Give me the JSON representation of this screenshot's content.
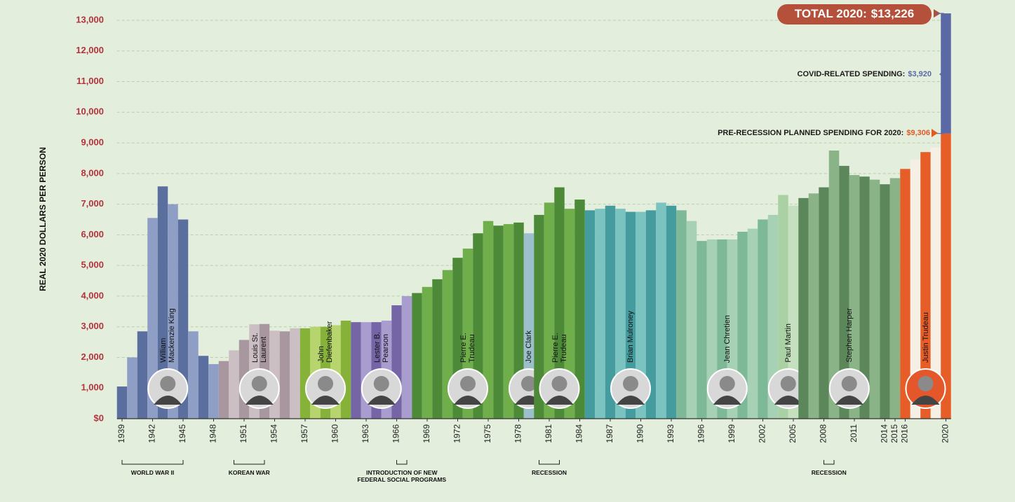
{
  "chart_data": {
    "type": "bar",
    "ylabel": "REAL 2020 DOLLARS PER PERSON",
    "xlim": [
      1938.5,
      2020.5
    ],
    "xticks": [
      1939,
      1942,
      1945,
      1948,
      1951,
      1954,
      1957,
      1960,
      1963,
      1966,
      1969,
      1972,
      1975,
      1978,
      1981,
      1984,
      1987,
      1990,
      1993,
      1996,
      1999,
      2002,
      2005,
      2008,
      2011,
      2014,
      2015,
      2016,
      2020
    ],
    "ylim": [
      0,
      13000
    ],
    "yticks": [
      {
        "value": 0,
        "label": "$0"
      },
      {
        "value": 1000,
        "label": "1,000"
      },
      {
        "value": 2000,
        "label": "2,000"
      },
      {
        "value": 3000,
        "label": "3,000"
      },
      {
        "value": 4000,
        "label": "4,000"
      },
      {
        "value": 5000,
        "label": "5,000"
      },
      {
        "value": 6000,
        "label": "6,000"
      },
      {
        "value": 7000,
        "label": "7,000"
      },
      {
        "value": 8000,
        "label": "8,000"
      },
      {
        "value": 9000,
        "label": "9,000"
      },
      {
        "value": 10000,
        "label": "10,000"
      },
      {
        "value": 11000,
        "label": "11,000"
      },
      {
        "value": 12000,
        "label": "12,000"
      },
      {
        "value": 13000,
        "label": "13,000"
      }
    ],
    "grid": true,
    "series": [
      {
        "name": "William Mackenzie King",
        "colors": [
          "#5b6f9f",
          "#8e9ec4"
        ],
        "x": [
          1939,
          1940,
          1941,
          1942,
          1943,
          1944,
          1945,
          1946,
          1947,
          1948
        ],
        "values": [
          1050,
          2000,
          2850,
          6550,
          7580,
          7000,
          6500,
          2850,
          2050,
          1780
        ]
      },
      {
        "name": "Louis St. Laurent",
        "colors": [
          "#a8979f",
          "#cbbfc3"
        ],
        "x": [
          1949,
          1950,
          1951,
          1952,
          1953,
          1954,
          1955,
          1956
        ],
        "values": [
          1880,
          2230,
          2570,
          3080,
          3090,
          2870,
          2850,
          2950
        ]
      },
      {
        "name": "John Diefenbaker",
        "colors": [
          "#86b23a",
          "#b6d56c"
        ],
        "x": [
          1957,
          1958,
          1959,
          1960,
          1961
        ],
        "values": [
          2950,
          3000,
          3000,
          3050,
          3200
        ]
      },
      {
        "name": "Lester B. Pearson",
        "colors": [
          "#7565a6",
          "#a99dd0"
        ],
        "x": [
          1962,
          1963,
          1964,
          1965,
          1966,
          1967
        ],
        "values": [
          3150,
          3150,
          3150,
          3200,
          3700,
          4000
        ]
      },
      {
        "name": "Pierre E. Trudeau",
        "colors": [
          "#4c8a38",
          "#6fae4b"
        ],
        "x": [
          1968,
          1969,
          1970,
          1971,
          1972,
          1973,
          1974,
          1975,
          1976,
          1977,
          1978
        ],
        "values": [
          4100,
          4300,
          4550,
          4850,
          5250,
          5550,
          6050,
          6450,
          6300,
          6350,
          6400
        ]
      },
      {
        "name": "Joe Clark",
        "colors": [
          "#9cc0cb",
          "#b8d4dc"
        ],
        "x": [
          1979
        ],
        "values": [
          6050
        ]
      },
      {
        "name": "Pierre E. Trudeau",
        "colors": [
          "#4c8a38",
          "#6fae4b"
        ],
        "x": [
          1980,
          1981,
          1982,
          1983,
          1984
        ],
        "values": [
          6650,
          7050,
          7550,
          6850,
          7150
        ]
      },
      {
        "name": "Brian Mulroney",
        "colors": [
          "#449c9e",
          "#7bc3c0"
        ],
        "x": [
          1985,
          1986,
          1987,
          1988,
          1989,
          1990,
          1991,
          1992,
          1993
        ],
        "values": [
          6800,
          6850,
          6950,
          6850,
          6750,
          6750,
          6800,
          7050,
          6950
        ]
      },
      {
        "name": "Jean Chretien",
        "colors": [
          "#7db897",
          "#a6d1b5"
        ],
        "x": [
          1994,
          1995,
          1996,
          1997,
          1998,
          1999,
          2000,
          2001,
          2002,
          2003
        ],
        "values": [
          6800,
          6450,
          5800,
          5850,
          5850,
          5850,
          6100,
          6200,
          6500,
          6650
        ]
      },
      {
        "name": "Paul Martin",
        "colors": [
          "#a9d1a4",
          "#c4e0bf"
        ],
        "x": [
          2004,
          2005
        ],
        "values": [
          7300,
          6950
        ]
      },
      {
        "name": "Stephen Harper",
        "colors": [
          "#5b875b",
          "#8ab487"
        ],
        "x": [
          2006,
          2007,
          2008,
          2009,
          2010,
          2011,
          2012,
          2013,
          2014,
          2015
        ],
        "values": [
          7200,
          7350,
          7550,
          8750,
          8250,
          7950,
          7900,
          7800,
          7650,
          7850
        ]
      },
      {
        "name": "Justin Trudeau",
        "colors": [
          "#e65d27",
          "#f6efe6"
        ],
        "x": [
          2016,
          2017,
          2018,
          2019,
          2020
        ],
        "values": [
          8150,
          8450,
          8700,
          8850,
          9306
        ]
      }
    ],
    "annotations": {
      "total": {
        "text": "TOTAL 2020:",
        "value": 13226,
        "value_label": "$13,226",
        "color": "#b5503a"
      },
      "covid": {
        "text": "COVID-RELATED SPENDING:",
        "value": 3920,
        "value_label": "$3,920",
        "color": "#5b68a6"
      },
      "pre_recession": {
        "text": "PRE-RECESSION PLANNED SPENDING FOR 2020:",
        "value": 9306,
        "value_label": "$9,306",
        "color": "#e05a25"
      }
    },
    "events": [
      {
        "label": "WORLD WAR II",
        "start": 1939,
        "end": 1945
      },
      {
        "label": "KOREAN WAR",
        "start": 1950,
        "end": 1953
      },
      {
        "label": "INTRODUCTION OF NEW FEDERAL SOCIAL PROGRAMS",
        "start": 1966,
        "end": 1967
      },
      {
        "label": "RECESSION",
        "start": 1980,
        "end": 1982
      },
      {
        "label": "RECESSION",
        "start": 2008,
        "end": 2009
      }
    ]
  }
}
